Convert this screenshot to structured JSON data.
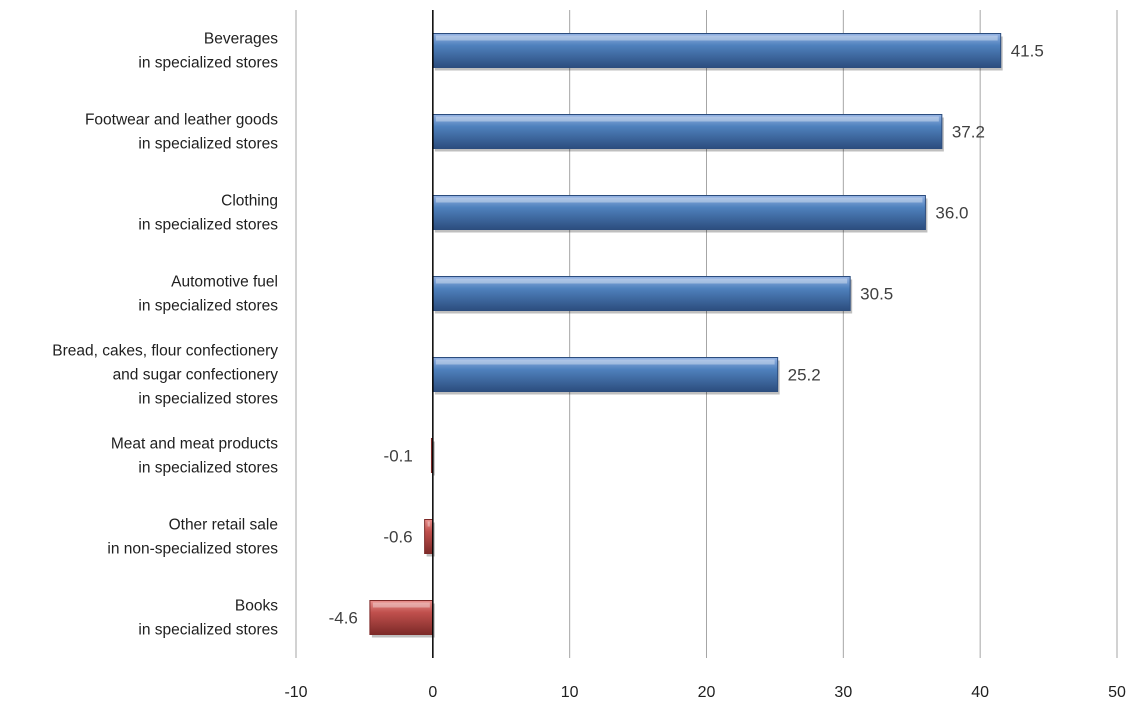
{
  "chart_data": {
    "type": "bar",
    "orientation": "horizontal",
    "categories": [
      [
        "Beverages",
        "in specialized stores"
      ],
      [
        "Footwear and leather goods",
        "in specialized stores"
      ],
      [
        "Clothing",
        "in specialized stores"
      ],
      [
        "Automotive fuel",
        "in specialized stores"
      ],
      [
        "Bread, cakes, flour confectionery",
        "and sugar confectionery",
        "in specialized stores"
      ],
      [
        "Meat and meat products",
        "in specialized stores"
      ],
      [
        "Other retail sale",
        "in non-specialized stores"
      ],
      [
        "Books",
        "in specialized stores"
      ]
    ],
    "values": [
      41.5,
      37.2,
      36.0,
      30.5,
      25.2,
      -0.1,
      -0.6,
      -4.6
    ],
    "value_labels": [
      "41.5",
      "37.2",
      "36.0",
      "30.5",
      "25.2",
      "-0.1",
      "-0.6",
      "-4.6"
    ],
    "xlim": [
      -10,
      50
    ],
    "xticks": [
      -10,
      0,
      10,
      20,
      30,
      40,
      50
    ],
    "xtick_labels": [
      "-10",
      "0",
      "10",
      "20",
      "30",
      "40",
      "50"
    ],
    "title": "",
    "xlabel": "",
    "ylabel": "",
    "grid": "vertical",
    "colors": {
      "positive": "#4f81bd",
      "positive_light": "#95b3e3",
      "positive_dark": "#2c4d7e",
      "negative": "#c0504d",
      "negative_light": "#e8908d",
      "negative_dark": "#7d2a28"
    }
  }
}
